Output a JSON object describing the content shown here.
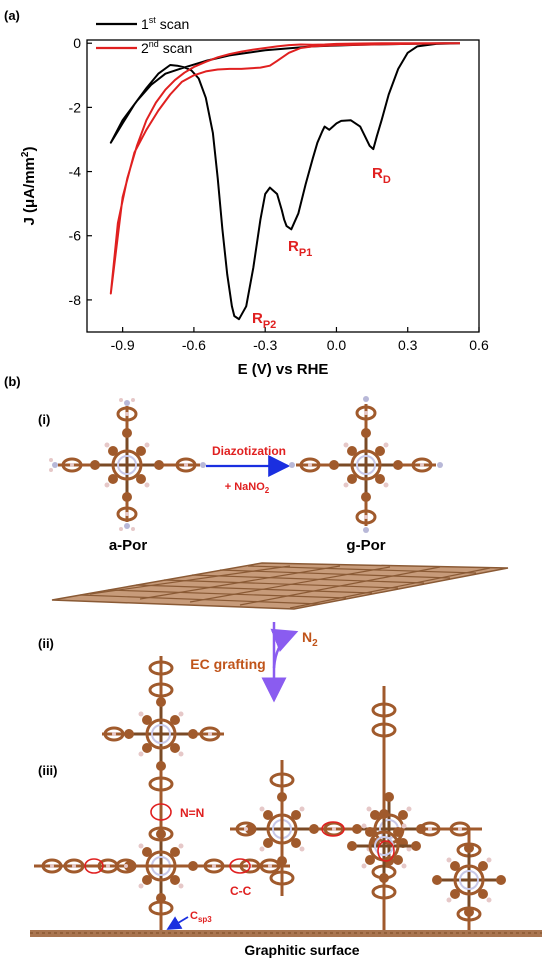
{
  "panel_a_label": "(a)",
  "panel_b_label": "(b)",
  "sub_i": "(i)",
  "sub_ii": "(ii)",
  "sub_iii": "(iii)",
  "legend": [
    {
      "base": "1",
      "sup": "st",
      "rest": " scan",
      "color": "#000000"
    },
    {
      "base": "2",
      "sup": "nd",
      "rest": " scan",
      "color": "#e02020"
    }
  ],
  "peaks": {
    "rd": {
      "main": "R",
      "sub": "D"
    },
    "rp1": {
      "main": "R",
      "sub": "P1"
    },
    "rp2": {
      "main": "R",
      "sub": "P2"
    }
  },
  "reaction_i": {
    "reagent_top": "Diazotization",
    "reagent_bottom_prefix": "+ NaNO",
    "reagent_bottom_sub": "2",
    "left_molecule": "a-Por",
    "right_molecule": "g-Por"
  },
  "reaction_ii": {
    "byproduct_main": "N",
    "byproduct_sub": "2",
    "process": "EC  grafting"
  },
  "reaction_iii": {
    "nn_label": "N=N",
    "cc_label": "C-C",
    "csp3_main": "C",
    "csp3_sub": "sp3",
    "surface_label": "Graphitic surface"
  },
  "chart_data": {
    "type": "line",
    "xlabel": "E (V) vs RHE",
    "ylabel_prefix": "J (",
    "ylabel_mu": "μA/mm",
    "ylabel_sup": "2",
    "ylabel_suffix": ")",
    "xlim": [
      -1.05,
      0.6
    ],
    "ylim": [
      -9.0,
      0.1
    ],
    "x_ticks": [
      -0.9,
      -0.6,
      -0.3,
      0.0,
      0.3,
      0.6
    ],
    "x_tick_labels": [
      "-0.9",
      "-0.6",
      "-0.3",
      "0.0",
      "0.3",
      "0.6"
    ],
    "y_ticks": [
      0,
      -2,
      -4,
      -6,
      -8
    ],
    "y_tick_labels": [
      "0",
      "-2",
      "-4",
      "-6",
      "-8"
    ],
    "series": [
      {
        "color": "#000000",
        "x": [
          0.52,
          0.42,
          0.34,
          0.3,
          0.26,
          0.22,
          0.19,
          0.17,
          0.155,
          0.14,
          0.12,
          0.1,
          0.06,
          0.02,
          0.0,
          -0.03,
          -0.05,
          -0.06,
          -0.08,
          -0.1,
          -0.13,
          -0.16,
          -0.19,
          -0.21,
          -0.22,
          -0.23,
          -0.25,
          -0.28,
          -0.3,
          -0.32,
          -0.35,
          -0.38,
          -0.41,
          -0.43,
          -0.44,
          -0.46,
          -0.48,
          -0.5,
          -0.52,
          -0.55,
          -0.58,
          -0.61,
          -0.64,
          -0.67,
          -0.7,
          -0.75,
          -0.8,
          -0.85,
          -0.9,
          -0.95,
          -0.9,
          -0.84,
          -0.78,
          -0.72,
          -0.65,
          -0.55,
          -0.45,
          -0.3,
          -0.1,
          0.1,
          0.3,
          0.45,
          0.52
        ],
        "y": [
          0.0,
          -0.02,
          -0.1,
          -0.3,
          -0.8,
          -1.6,
          -2.4,
          -2.9,
          -3.3,
          -3.2,
          -2.9,
          -2.6,
          -2.4,
          -2.42,
          -2.5,
          -2.7,
          -2.6,
          -2.75,
          -3.1,
          -3.6,
          -4.4,
          -5.3,
          -5.8,
          -5.7,
          -5.5,
          -5.2,
          -4.7,
          -4.5,
          -4.7,
          -5.5,
          -7.0,
          -8.2,
          -8.6,
          -8.5,
          -8.2,
          -7.2,
          -5.8,
          -4.2,
          -2.8,
          -1.7,
          -1.1,
          -0.85,
          -0.75,
          -0.7,
          -0.68,
          -0.95,
          -1.4,
          -1.9,
          -2.5,
          -3.1,
          -2.4,
          -1.8,
          -1.3,
          -0.95,
          -0.78,
          -0.55,
          -0.38,
          -0.22,
          -0.1,
          -0.05,
          -0.02,
          0.0,
          0.0
        ]
      },
      {
        "color": "#e02020",
        "x": [
          0.52,
          0.4,
          0.3,
          0.2,
          0.1,
          0.0,
          -0.05,
          -0.1,
          -0.15,
          -0.2,
          -0.25,
          -0.28,
          -0.32,
          -0.36,
          -0.4,
          -0.45,
          -0.5,
          -0.55,
          -0.6,
          -0.65,
          -0.7,
          -0.75,
          -0.8,
          -0.85,
          -0.9,
          -0.95,
          -0.92,
          -0.88,
          -0.84,
          -0.8,
          -0.76,
          -0.72,
          -0.68,
          -0.64,
          -0.6,
          -0.55,
          -0.5,
          -0.45,
          -0.4,
          -0.35,
          -0.3,
          -0.25,
          -0.2,
          -0.15,
          -0.1,
          -0.05,
          0.0,
          0.1,
          0.2,
          0.3,
          0.4,
          0.52
        ],
        "y": [
          0.0,
          -0.01,
          -0.02,
          -0.03,
          -0.05,
          -0.06,
          -0.08,
          -0.1,
          -0.15,
          -0.3,
          -0.55,
          -0.7,
          -0.76,
          -0.78,
          -0.8,
          -0.8,
          -0.82,
          -0.88,
          -1.0,
          -1.2,
          -1.6,
          -2.1,
          -2.7,
          -3.4,
          -4.8,
          -7.8,
          -5.6,
          -4.2,
          -3.2,
          -2.4,
          -1.85,
          -1.45,
          -1.15,
          -0.92,
          -0.74,
          -0.58,
          -0.44,
          -0.34,
          -0.26,
          -0.2,
          -0.15,
          -0.1,
          -0.06,
          -0.04,
          -0.05,
          -0.04,
          -0.02,
          -0.01,
          0.0,
          0.0,
          0.0,
          0.0
        ]
      }
    ]
  }
}
